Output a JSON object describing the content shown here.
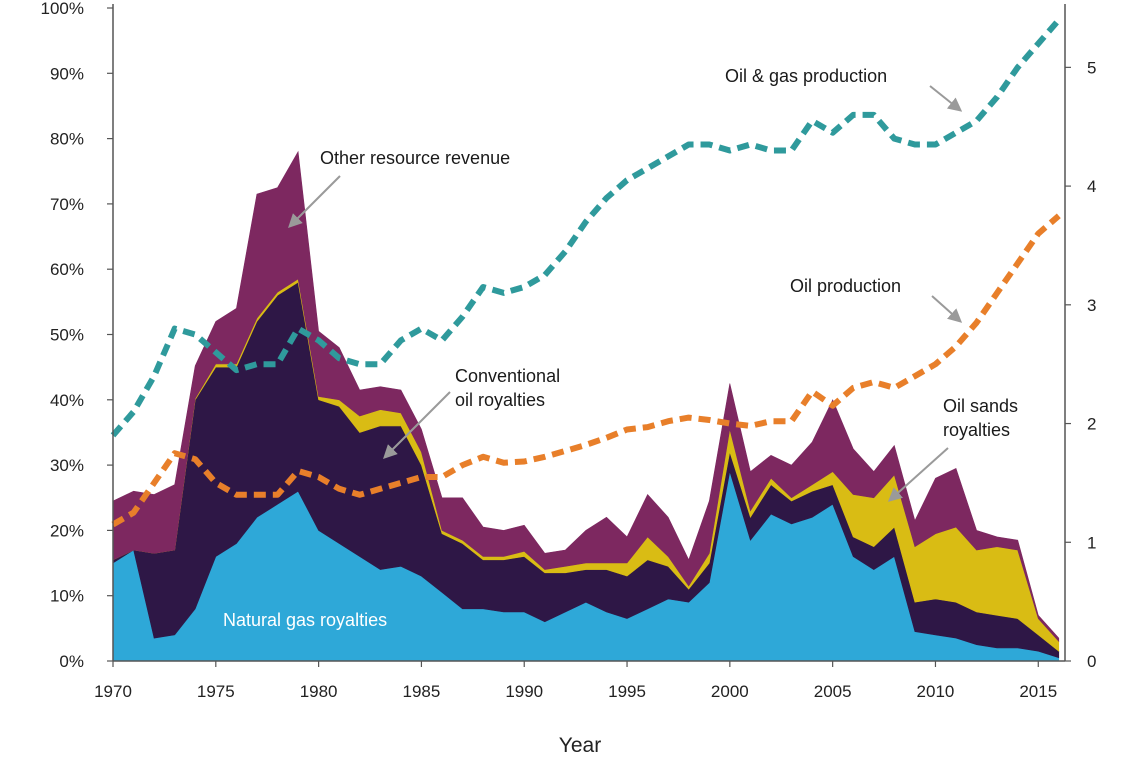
{
  "chart_data": {
    "type": "area",
    "title": "",
    "xlabel": "Year",
    "ylabel": "",
    "ylabel_right": "",
    "xlim": [
      1970,
      2016.3
    ],
    "ylim": [
      0,
      100
    ],
    "ylim_right": [
      0,
      5.5
    ],
    "x_ticks": [
      1970,
      1975,
      1980,
      1985,
      1990,
      1995,
      2000,
      2005,
      2010,
      2015
    ],
    "y_ticks": [
      "0%",
      "10%",
      "20%",
      "30%",
      "40%",
      "50%",
      "60%",
      "70%",
      "80%",
      "90%",
      "100%"
    ],
    "y_right_ticks": [
      0,
      1,
      2,
      3,
      4,
      5
    ],
    "x": [
      1970,
      1971,
      1972,
      1973,
      1974,
      1975,
      1976,
      1977,
      1978,
      1979,
      1980,
      1981,
      1982,
      1983,
      1984,
      1985,
      1986,
      1987,
      1988,
      1989,
      1990,
      1991,
      1992,
      1993,
      1994,
      1995,
      1996,
      1997,
      1998,
      1999,
      2000,
      2001,
      2002,
      2003,
      2004,
      2005,
      2006,
      2007,
      2008,
      2009,
      2010,
      2011,
      2012,
      2013,
      2014,
      2015,
      2016
    ],
    "stacked_series": [
      {
        "name": "Natural gas royalties",
        "color": "#2ea8d8",
        "values": [
          15,
          17,
          3.5,
          4,
          8,
          16,
          18,
          22,
          24,
          26,
          20,
          18,
          16,
          14,
          14.5,
          13,
          10.5,
          8,
          8,
          7.5,
          7.5,
          6,
          7.5,
          9,
          7.5,
          6.5,
          8,
          9.5,
          9,
          12,
          29,
          18.5,
          22.5,
          21,
          22,
          24,
          16,
          14,
          16,
          4.5,
          4,
          3.5,
          2.5,
          2,
          2,
          1.5,
          0.5
        ]
      },
      {
        "name": "Conventional oil royalties",
        "color": "#2e1746",
        "values": [
          0.5,
          0,
          13,
          13,
          32,
          29,
          27,
          30,
          32,
          32,
          20,
          21,
          19,
          22,
          21.5,
          17,
          9,
          10,
          7.5,
          8,
          8.5,
          7.5,
          6,
          5,
          6.5,
          6.5,
          7.5,
          5,
          2,
          3,
          3,
          3.5,
          4.5,
          3.5,
          4,
          3,
          3,
          3.5,
          4.5,
          4.5,
          5.5,
          5.5,
          5,
          5,
          4.5,
          2.5,
          1
        ]
      },
      {
        "name": "Oil sands royalties",
        "color": "#d9bc14",
        "values": [
          0,
          0,
          0,
          0,
          0.2,
          0.5,
          0.5,
          0.5,
          0.5,
          0.5,
          0.5,
          1,
          2.5,
          2.5,
          2,
          2,
          0.5,
          0.5,
          0.5,
          0.5,
          0.8,
          0.5,
          1,
          1,
          1,
          2,
          3.5,
          1.5,
          0.5,
          1.5,
          3.5,
          1,
          1,
          0.5,
          1,
          2,
          6.5,
          7.5,
          8,
          8.5,
          10,
          11.5,
          9.5,
          10.5,
          10.5,
          2.5,
          1.5
        ]
      },
      {
        "name": "Other resource revenue",
        "color": "#7d2860",
        "values": [
          9,
          9,
          9,
          10,
          5,
          6.5,
          8.5,
          19,
          16,
          19.5,
          10,
          8,
          4,
          3.5,
          3.5,
          3.5,
          5,
          6.5,
          4.5,
          4,
          4,
          2.5,
          2.5,
          5,
          7,
          4,
          6.5,
          6,
          4,
          8,
          7,
          6,
          3.5,
          5,
          6.5,
          11,
          7,
          4,
          4.5,
          4,
          8.5,
          9,
          3,
          1.5,
          1.5,
          0.5,
          0.5
        ]
      }
    ],
    "line_series": [
      {
        "name": "Oil & gas production",
        "color": "#2f9a9c",
        "axis": "right",
        "values": [
          1.9,
          2.1,
          2.4,
          2.8,
          2.75,
          2.6,
          2.45,
          2.5,
          2.5,
          2.8,
          2.7,
          2.55,
          2.5,
          2.5,
          2.7,
          2.8,
          2.7,
          2.9,
          3.15,
          3.1,
          3.15,
          3.25,
          3.45,
          3.7,
          3.9,
          4.05,
          4.15,
          4.25,
          4.35,
          4.35,
          4.3,
          4.35,
          4.3,
          4.3,
          4.55,
          4.45,
          4.6,
          4.6,
          4.4,
          4.35,
          4.35,
          4.45,
          4.55,
          4.75,
          5.0,
          5.2,
          5.4
        ]
      },
      {
        "name": "Oil production",
        "color": "#e87f2a",
        "axis": "right",
        "values": [
          1.15,
          1.25,
          1.5,
          1.75,
          1.7,
          1.5,
          1.4,
          1.4,
          1.4,
          1.6,
          1.55,
          1.45,
          1.4,
          1.45,
          1.5,
          1.55,
          1.55,
          1.65,
          1.72,
          1.67,
          1.68,
          1.72,
          1.77,
          1.82,
          1.88,
          1.95,
          1.97,
          2.02,
          2.05,
          2.03,
          2.0,
          1.98,
          2.02,
          2.02,
          2.27,
          2.15,
          2.3,
          2.35,
          2.3,
          2.4,
          2.5,
          2.65,
          2.85,
          3.1,
          3.35,
          3.6,
          3.75
        ]
      }
    ],
    "annotations": [
      {
        "text": "Other resource revenue",
        "target_series": "Other resource revenue"
      },
      {
        "text": "Conventional",
        "text2": "oil royalties",
        "target_series": "Conventional oil royalties"
      },
      {
        "text": "Oil & gas production",
        "target_series": "Oil & gas production"
      },
      {
        "text": "Oil production",
        "target_series": "Oil production"
      },
      {
        "text": "Oil sands",
        "text2": "royalties",
        "target_series": "Oil sands royalties"
      },
      {
        "text": "Natural gas royalties",
        "target_series": "Natural gas royalties"
      }
    ],
    "grid": false,
    "arrow_color": "#9a9a9a"
  }
}
